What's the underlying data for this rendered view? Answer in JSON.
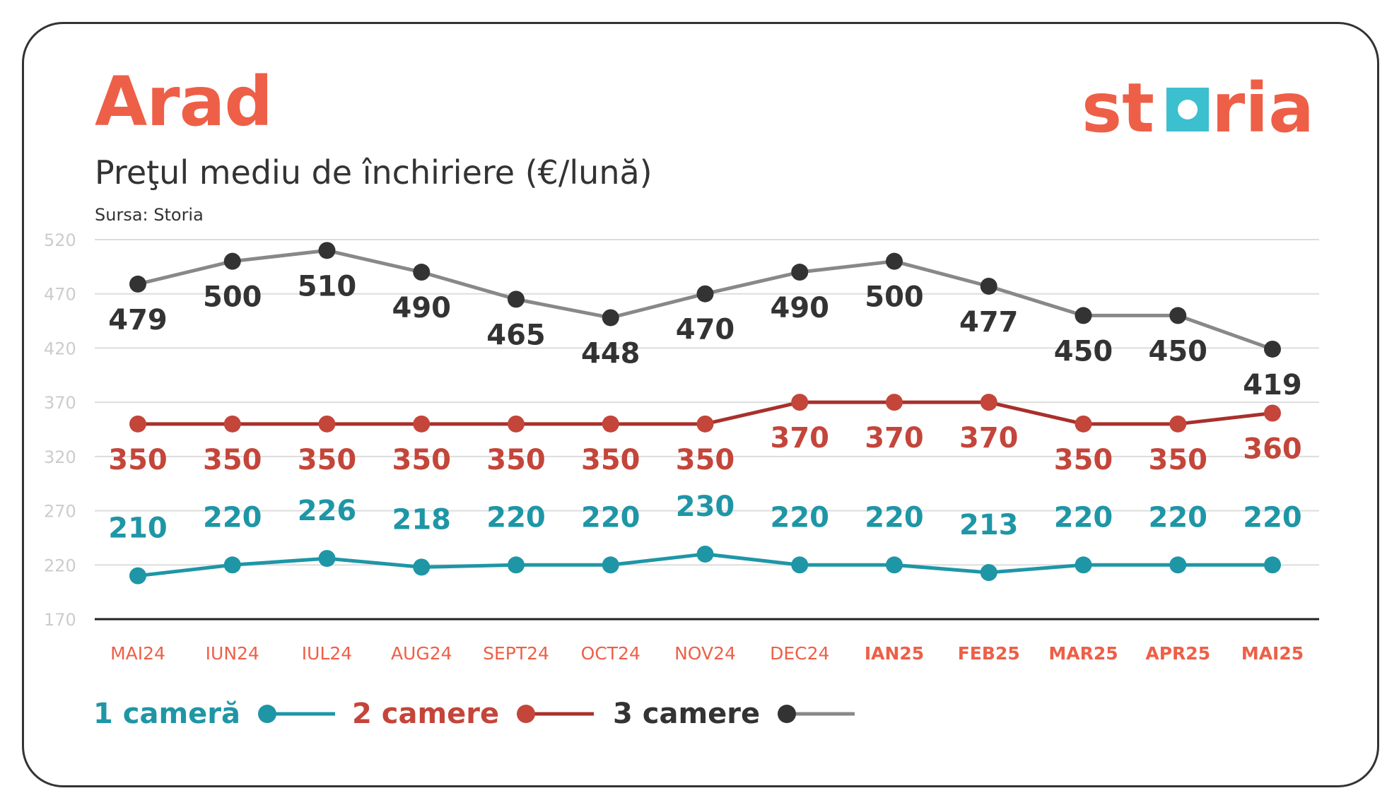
{
  "header": {
    "title": "Arad",
    "subtitle": "Preţul mediu de închiriere (€/lună)",
    "source": "Sursa: Storia"
  },
  "logo": {
    "wordmark": "storia",
    "brand_color": "#ee5f47",
    "square_color": "#3cbfce"
  },
  "colors": {
    "one_room": "#1e96a6",
    "two_rooms": "#c4453a",
    "two_rooms_line": "#a8302b",
    "three_rooms": "#333333",
    "three_rooms_line": "#888888",
    "month_label": "#ee5f47",
    "grid": "#dddddd",
    "axis_tick": "#cccccc"
  },
  "legend": [
    {
      "label": "1 cameră",
      "series": 0
    },
    {
      "label": "2 camere",
      "series": 1
    },
    {
      "label": "3 camere",
      "series": 2
    }
  ],
  "chart_data": {
    "type": "line",
    "title": "Preţul mediu de închiriere (€/lună)",
    "xlabel": "",
    "ylabel": "",
    "ylim": [
      170,
      520
    ],
    "yticks": [
      "520",
      "470",
      "420",
      "370",
      "320",
      "270",
      "220",
      "170"
    ],
    "categories": [
      "MAI24",
      "IUN24",
      "IUL24",
      "AUG24",
      "SEPT24",
      "OCT24",
      "NOV24",
      "DEC24",
      "IAN25",
      "FEB25",
      "MAR25",
      "APR25",
      "MAI25"
    ],
    "bold_categories": [
      "IAN25",
      "FEB25",
      "MAR25",
      "APR25",
      "MAI25"
    ],
    "grid": true,
    "legend_position": "bottom-left",
    "series": [
      {
        "name": "1 cameră",
        "values": [
          210,
          220,
          226,
          218,
          220,
          220,
          230,
          220,
          220,
          213,
          220,
          220,
          220
        ],
        "labels": [
          "210",
          "220",
          "226",
          "218",
          "220",
          "220",
          "230",
          "220",
          "220",
          "213",
          "220",
          "220",
          "220"
        ]
      },
      {
        "name": "2 camere",
        "values": [
          350,
          350,
          350,
          350,
          350,
          350,
          350,
          370,
          370,
          370,
          350,
          350,
          360
        ],
        "labels": [
          "350",
          "350",
          "350",
          "350",
          "350",
          "350",
          "350",
          "370",
          "370",
          "370",
          "350",
          "350",
          "360"
        ]
      },
      {
        "name": "3 camere",
        "values": [
          479,
          500,
          510,
          490,
          465,
          448,
          470,
          490,
          500,
          477,
          450,
          450,
          419
        ],
        "labels": [
          "479",
          "500",
          "510",
          "490",
          "465",
          "448",
          "470",
          "490",
          "500",
          "477",
          "450",
          "450",
          "419"
        ]
      }
    ]
  }
}
